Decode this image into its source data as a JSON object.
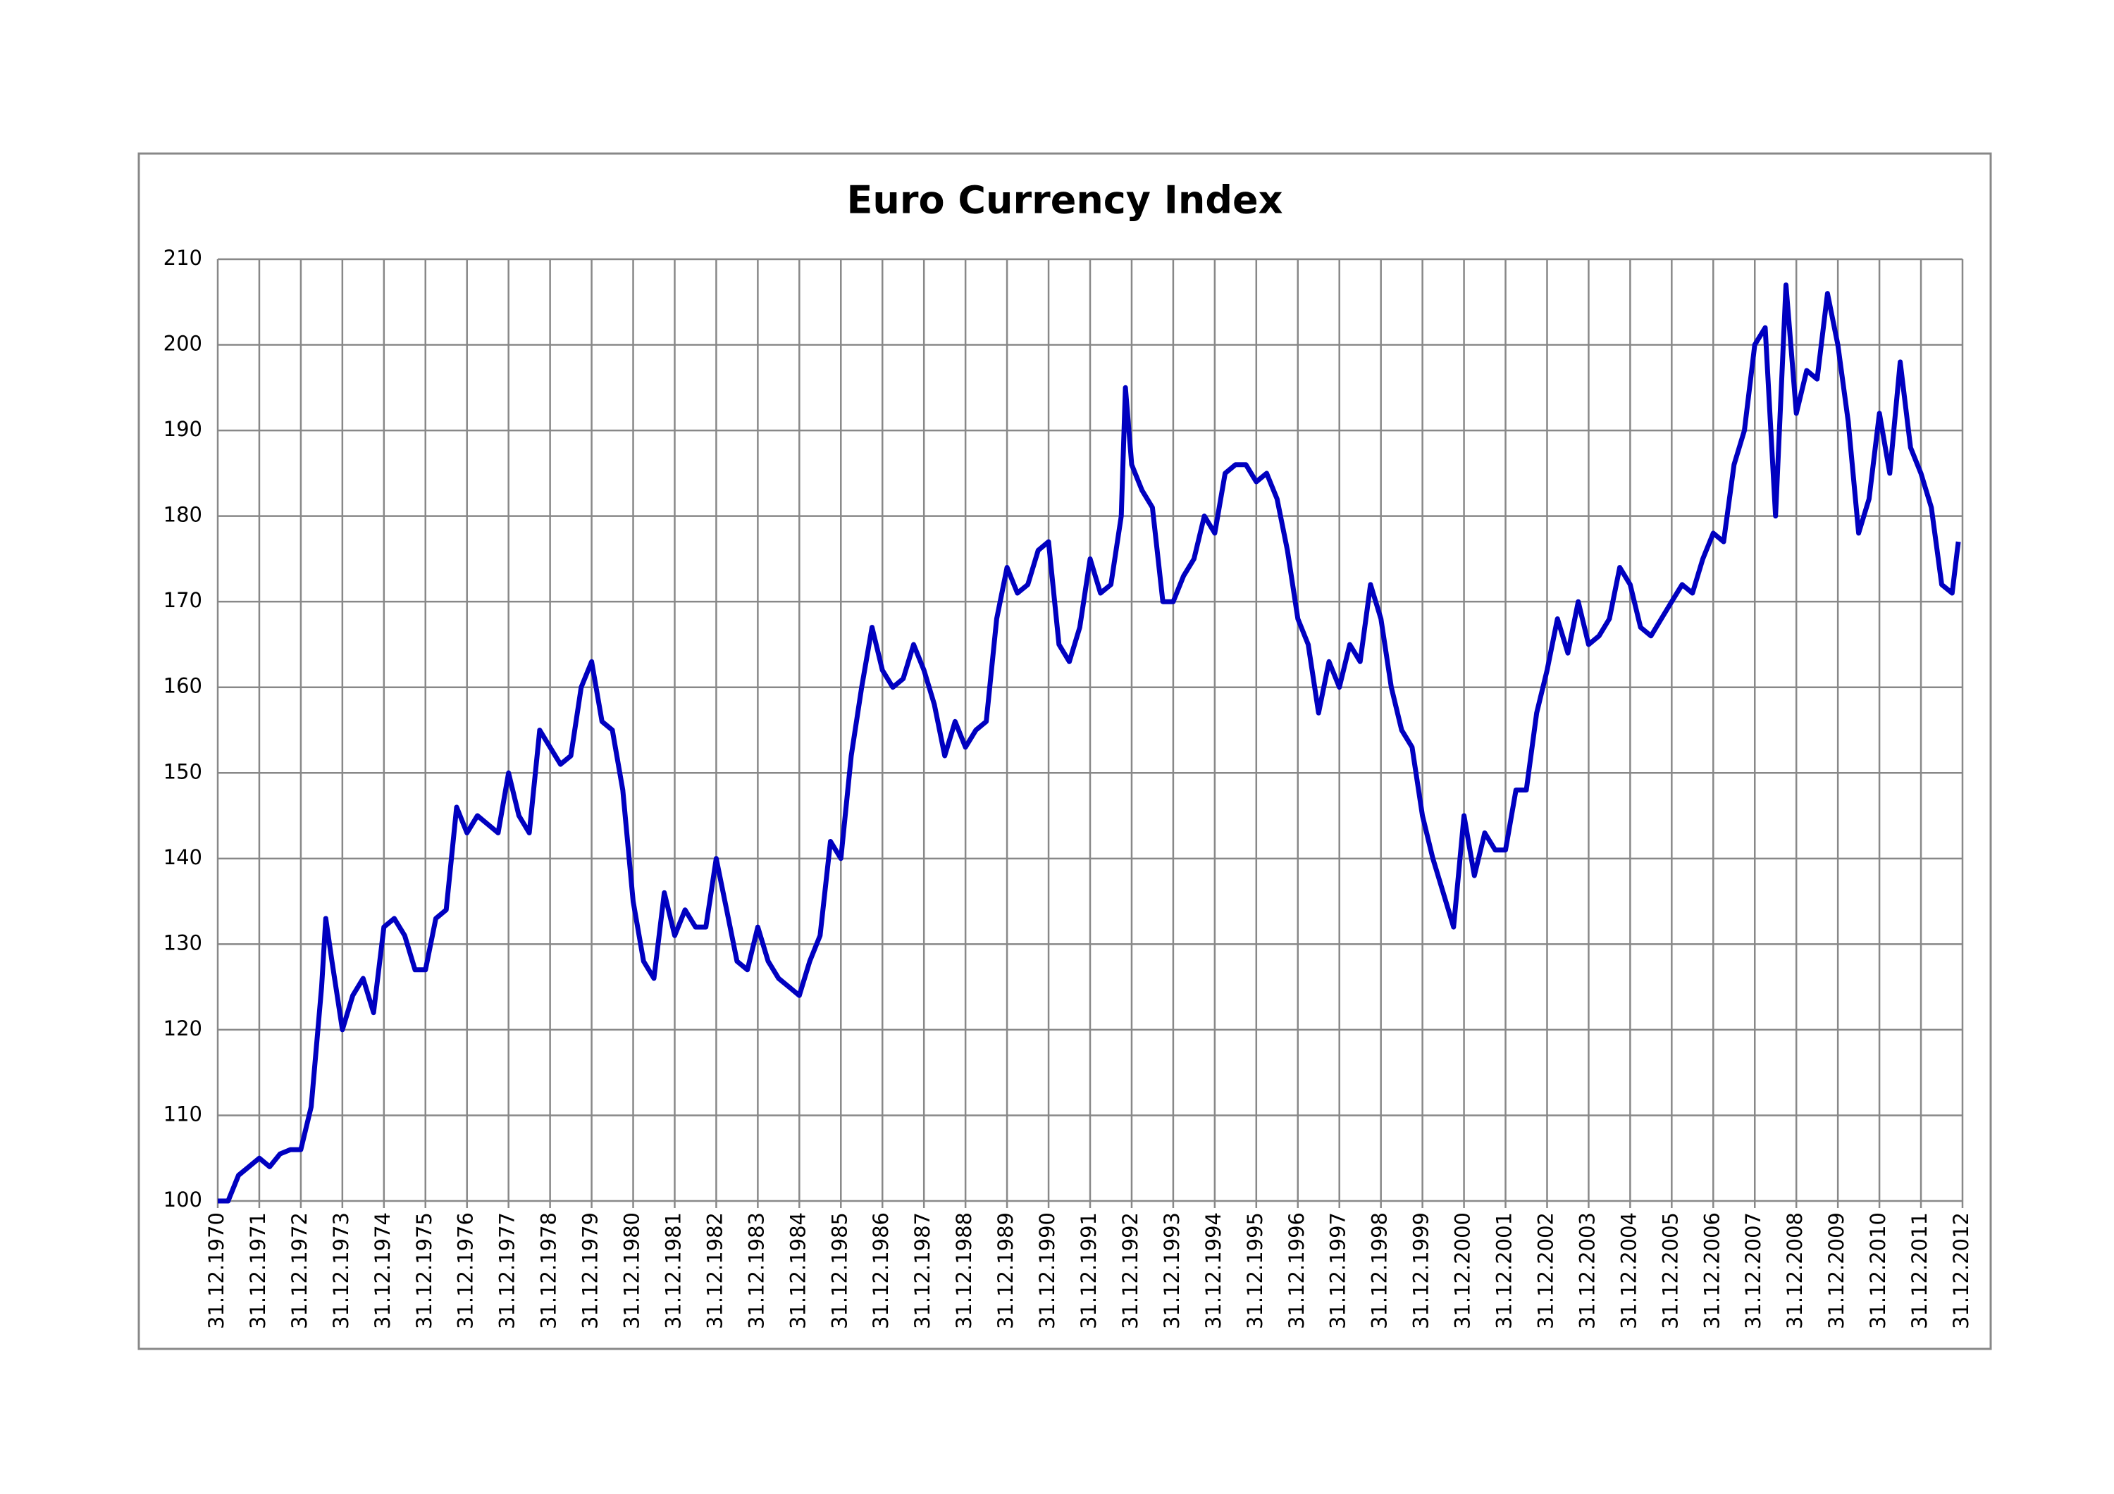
{
  "chart_data": {
    "type": "line",
    "title": "Euro Currency Index",
    "x": [
      1971.0,
      1971.25,
      1971.5,
      1971.75,
      1972.0,
      1972.25,
      1972.5,
      1972.75,
      1973.0,
      1973.25,
      1973.5,
      1973.6,
      1973.75,
      1974.0,
      1974.25,
      1974.5,
      1974.75,
      1975.0,
      1975.25,
      1975.5,
      1975.75,
      1976.0,
      1976.25,
      1976.5,
      1976.75,
      1977.0,
      1977.25,
      1977.5,
      1977.75,
      1978.0,
      1978.25,
      1978.5,
      1978.75,
      1979.0,
      1979.25,
      1979.5,
      1979.75,
      1980.0,
      1980.25,
      1980.5,
      1980.75,
      1981.0,
      1981.25,
      1981.5,
      1981.75,
      1982.0,
      1982.25,
      1982.5,
      1982.75,
      1983.0,
      1983.25,
      1983.5,
      1983.75,
      1984.0,
      1984.25,
      1984.5,
      1984.75,
      1985.0,
      1985.25,
      1985.5,
      1985.75,
      1986.0,
      1986.25,
      1986.5,
      1986.75,
      1987.0,
      1987.25,
      1987.5,
      1987.75,
      1988.0,
      1988.25,
      1988.5,
      1988.75,
      1989.0,
      1989.25,
      1989.5,
      1989.75,
      1990.0,
      1990.25,
      1990.5,
      1990.75,
      1991.0,
      1991.25,
      1991.5,
      1991.75,
      1992.0,
      1992.25,
      1992.5,
      1992.75,
      1992.85,
      1993.0,
      1993.25,
      1993.5,
      1993.75,
      1994.0,
      1994.25,
      1994.5,
      1994.75,
      1995.0,
      1995.25,
      1995.5,
      1995.75,
      1996.0,
      1996.25,
      1996.5,
      1996.75,
      1997.0,
      1997.25,
      1997.5,
      1997.75,
      1998.0,
      1998.25,
      1998.5,
      1998.75,
      1999.0,
      1999.25,
      1999.5,
      1999.75,
      2000.0,
      2000.25,
      2000.5,
      2000.75,
      2001.0,
      2001.25,
      2001.5,
      2001.75,
      2002.0,
      2002.25,
      2002.5,
      2002.75,
      2003.0,
      2003.25,
      2003.5,
      2003.75,
      2004.0,
      2004.25,
      2004.5,
      2004.75,
      2005.0,
      2005.25,
      2005.5,
      2005.75,
      2006.0,
      2006.25,
      2006.5,
      2006.75,
      2007.0,
      2007.25,
      2007.5,
      2007.75,
      2008.0,
      2008.25,
      2008.5,
      2008.75,
      2009.0,
      2009.25,
      2009.5,
      2009.75,
      2010.0,
      2010.25,
      2010.5,
      2010.75,
      2011.0,
      2011.25,
      2011.5,
      2011.75,
      2012.0,
      2012.25,
      2012.5,
      2012.75,
      2012.9
    ],
    "series": [
      {
        "name": "Euro Currency Index",
        "color": "#0000c0",
        "values": [
          100,
          100,
          103,
          104,
          105,
          104,
          105.5,
          106,
          106,
          111,
          125,
          133,
          128,
          120,
          124,
          126,
          122,
          132,
          133,
          131,
          127,
          127,
          133,
          134,
          146,
          143,
          145,
          144,
          143,
          150,
          145,
          143,
          155,
          153,
          151,
          152,
          160,
          163,
          156,
          155,
          148,
          135,
          128,
          126,
          136,
          131,
          134,
          132,
          132,
          140,
          134,
          128,
          127,
          132,
          128,
          126,
          125,
          124,
          128,
          131,
          142,
          140,
          152,
          160,
          167,
          162,
          160,
          161,
          165,
          162,
          158,
          152,
          156,
          153,
          155,
          156,
          168,
          174,
          171,
          172,
          176,
          177,
          165,
          163,
          167,
          175,
          171,
          172,
          180,
          195,
          186,
          183,
          181,
          170,
          170,
          173,
          175,
          180,
          178,
          185,
          186,
          186,
          184,
          185,
          182,
          176,
          168,
          165,
          157,
          163,
          160,
          165,
          163,
          172,
          168,
          160,
          155,
          153,
          145,
          140,
          136,
          132,
          145,
          138,
          143,
          141,
          141,
          148,
          148,
          157,
          162,
          168,
          164,
          170,
          165,
          166,
          168,
          174,
          172,
          167,
          166,
          168,
          170,
          172,
          171,
          175,
          178,
          177,
          186,
          190,
          200,
          202,
          180,
          207,
          192,
          197,
          196,
          206,
          200,
          191,
          178,
          182,
          192,
          185,
          198,
          188,
          185,
          181,
          172,
          171,
          177
        ]
      }
    ],
    "xlim": [
      1971,
      2013
    ],
    "xticks": [
      {
        "value": 1971,
        "label": "31.12.1970"
      },
      {
        "value": 1972,
        "label": "31.12.1971"
      },
      {
        "value": 1973,
        "label": "31.12.1972"
      },
      {
        "value": 1974,
        "label": "31.12.1973"
      },
      {
        "value": 1975,
        "label": "31.12.1974"
      },
      {
        "value": 1976,
        "label": "31.12.1975"
      },
      {
        "value": 1977,
        "label": "31.12.1976"
      },
      {
        "value": 1978,
        "label": "31.12.1977"
      },
      {
        "value": 1979,
        "label": "31.12.1978"
      },
      {
        "value": 1980,
        "label": "31.12.1979"
      },
      {
        "value": 1981,
        "label": "31.12.1980"
      },
      {
        "value": 1982,
        "label": "31.12.1981"
      },
      {
        "value": 1983,
        "label": "31.12.1982"
      },
      {
        "value": 1984,
        "label": "31.12.1983"
      },
      {
        "value": 1985,
        "label": "31.12.1984"
      },
      {
        "value": 1986,
        "label": "31.12.1985"
      },
      {
        "value": 1987,
        "label": "31.12.1986"
      },
      {
        "value": 1988,
        "label": "31.12.1987"
      },
      {
        "value": 1989,
        "label": "31.12.1988"
      },
      {
        "value": 1990,
        "label": "31.12.1989"
      },
      {
        "value": 1991,
        "label": "31.12.1990"
      },
      {
        "value": 1992,
        "label": "31.12.1991"
      },
      {
        "value": 1993,
        "label": "31.12.1992"
      },
      {
        "value": 1994,
        "label": "31.12.1993"
      },
      {
        "value": 1995,
        "label": "31.12.1994"
      },
      {
        "value": 1996,
        "label": "31.12.1995"
      },
      {
        "value": 1997,
        "label": "31.12.1996"
      },
      {
        "value": 1998,
        "label": "31.12.1997"
      },
      {
        "value": 1999,
        "label": "31.12.1998"
      },
      {
        "value": 2000,
        "label": "31.12.1999"
      },
      {
        "value": 2001,
        "label": "31.12.2000"
      },
      {
        "value": 2002,
        "label": "31.12.2001"
      },
      {
        "value": 2003,
        "label": "31.12.2002"
      },
      {
        "value": 2004,
        "label": "31.12.2003"
      },
      {
        "value": 2005,
        "label": "31.12.2004"
      },
      {
        "value": 2006,
        "label": "31.12.2005"
      },
      {
        "value": 2007,
        "label": "31.12.2006"
      },
      {
        "value": 2008,
        "label": "31.12.2007"
      },
      {
        "value": 2009,
        "label": "31.12.2008"
      },
      {
        "value": 2010,
        "label": "31.12.2009"
      },
      {
        "value": 2011,
        "label": "31.12.2010"
      },
      {
        "value": 2012,
        "label": "31.12.2011"
      },
      {
        "value": 2013,
        "label": "31.12.2012"
      }
    ],
    "ylim": [
      100,
      210
    ],
    "yticks": [
      100,
      110,
      120,
      130,
      140,
      150,
      160,
      170,
      180,
      190,
      200,
      210
    ],
    "grid": true
  }
}
